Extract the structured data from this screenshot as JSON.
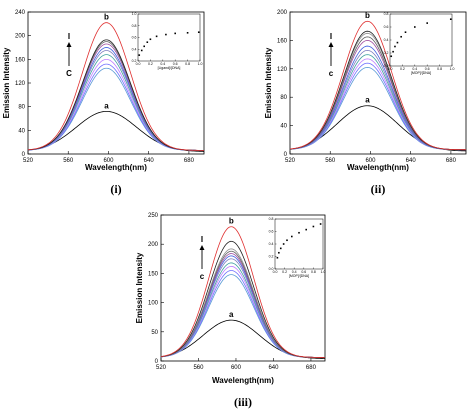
{
  "chart_data": [
    {
      "type": "line",
      "panel_label": "(i)",
      "xlabel": "Wavelength(nm)",
      "ylabel": "Emission Intensity",
      "xlim": [
        520,
        695
      ],
      "ylim": [
        0,
        240
      ],
      "xticks": [
        "520",
        "560",
        "600",
        "640",
        "680"
      ],
      "yticks": [
        "0",
        "40",
        "80",
        "120",
        "160",
        "200",
        "240"
      ],
      "peak_x": 598,
      "curve_label_a": "a",
      "curve_label_b": "b",
      "arrow_label_top": "I",
      "arrow_label_bottom": "C",
      "series_peaks": [
        72,
        145,
        152,
        160,
        168,
        175,
        180,
        186,
        190,
        193,
        222
      ],
      "series_colors": [
        "#000000",
        "#5b9bd5",
        "#7070ff",
        "#c080ff",
        "#40a0a0",
        "#8080c0",
        "#4060e0",
        "#a050a0",
        "#606060",
        "#202020",
        "#e03030"
      ],
      "inset": {
        "type": "scatter",
        "xlabel": "[Ligand]/[DNA]",
        "ylabel": "",
        "xlim": [
          0.0,
          1.0
        ],
        "ylim": [
          0.2,
          1.0
        ],
        "xticks": [
          "0.0",
          "0.2",
          "0.4",
          "0.6",
          "0.8",
          "1.0"
        ],
        "yticks": [
          "0.2",
          "0.4",
          "0.6",
          "0.8",
          "1.0"
        ],
        "x": [
          0.02,
          0.06,
          0.1,
          0.15,
          0.2,
          0.3,
          0.45,
          0.6,
          0.8,
          0.98
        ],
        "y": [
          0.3,
          0.38,
          0.45,
          0.52,
          0.57,
          0.62,
          0.65,
          0.67,
          0.68,
          0.69
        ]
      }
    },
    {
      "type": "line",
      "panel_label": "(ii)",
      "xlabel": "Wavelength(nm)",
      "ylabel": "Emission Intensity",
      "xlim": [
        520,
        695
      ],
      "ylim": [
        0,
        200
      ],
      "xticks": [
        "520",
        "560",
        "600",
        "640",
        "680"
      ],
      "yticks": [
        "0",
        "40",
        "80",
        "120",
        "160",
        "200"
      ],
      "peak_x": 597,
      "curve_label_a": "a",
      "curve_label_b": "b",
      "arrow_label_top": "I",
      "arrow_label_bottom": "c",
      "series_peaks": [
        68,
        122,
        128,
        134,
        140,
        146,
        152,
        160,
        165,
        170,
        173,
        187
      ],
      "series_colors": [
        "#000000",
        "#5b9bd5",
        "#7070ff",
        "#c080ff",
        "#40a0a0",
        "#8080c0",
        "#4060e0",
        "#a050a0",
        "#606060",
        "#909090",
        "#202020",
        "#e03030"
      ],
      "inset": {
        "type": "scatter",
        "xlabel": "[MOP]/[DNA]",
        "ylabel": "",
        "xlim": [
          0.0,
          1.0
        ],
        "ylim": [
          0.0,
          0.8
        ],
        "xticks": [
          "0.0",
          "0.2",
          "0.4",
          "0.6",
          "0.8",
          "1.0"
        ],
        "yticks": [
          "0.0",
          "0.2",
          "0.4",
          "0.6",
          "0.8"
        ],
        "x": [
          0.02,
          0.05,
          0.08,
          0.12,
          0.18,
          0.25,
          0.4,
          0.6,
          0.98
        ],
        "y": [
          0.15,
          0.22,
          0.3,
          0.36,
          0.45,
          0.52,
          0.6,
          0.66,
          0.72
        ]
      }
    },
    {
      "type": "line",
      "panel_label": "(iii)",
      "xlabel": "Wavelength(nm)",
      "ylabel": "Emission Intensity",
      "xlim": [
        520,
        695
      ],
      "ylim": [
        0,
        250
      ],
      "xticks": [
        "520",
        "560",
        "600",
        "640",
        "680"
      ],
      "yticks": [
        "0",
        "50",
        "100",
        "150",
        "200",
        "250"
      ],
      "peak_x": 595,
      "curve_label_a": "a",
      "curve_label_b": "b",
      "arrow_label_top": "I",
      "arrow_label_bottom": "c",
      "series_peaks": [
        70,
        148,
        155,
        162,
        168,
        175,
        180,
        184,
        188,
        192,
        205,
        230
      ],
      "series_colors": [
        "#000000",
        "#5b9bd5",
        "#7070ff",
        "#c080ff",
        "#40a0a0",
        "#8080c0",
        "#4060e0",
        "#a050a0",
        "#606060",
        "#909090",
        "#202020",
        "#e03030"
      ],
      "inset": {
        "type": "scatter",
        "xlabel": "[MOP]/[DNA]",
        "ylabel": "",
        "xlim": [
          0.0,
          1.0
        ],
        "ylim": [
          0.0,
          0.8
        ],
        "xticks": [
          "0.0",
          "0.2",
          "0.4",
          "0.6",
          "0.8",
          "1.0"
        ],
        "yticks": [
          "0.0",
          "0.2",
          "0.4",
          "0.6",
          "0.8"
        ],
        "x": [
          0.05,
          0.08,
          0.12,
          0.18,
          0.25,
          0.35,
          0.5,
          0.65,
          0.8,
          0.95
        ],
        "y": [
          0.18,
          0.26,
          0.33,
          0.4,
          0.46,
          0.52,
          0.58,
          0.63,
          0.68,
          0.72
        ]
      }
    }
  ]
}
